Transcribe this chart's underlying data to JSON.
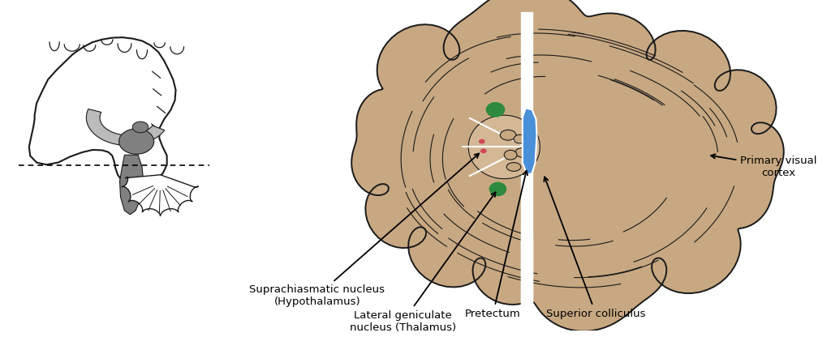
{
  "bg_color": "#ffffff",
  "brain_fill": "#c8a882",
  "brain_edge": "#1a1a1a",
  "brain_linewidth": 1.4,
  "green_color": "#2d8a3e",
  "blue_color": "#4a90d9",
  "pink_color": "#d04858",
  "gray_fill_dark": "#808080",
  "gray_fill_light": "#bbbbbb",
  "labels": {
    "suprachiasmatic": "Suprachiasmatic nucleus\n(Hypothalamus)",
    "lateral": "Lateral geniculate\nnucleus (Thalamus)",
    "pretectum": "Pretectum",
    "superior": "Superior colliculus",
    "primary_visual": "Primary visual\ncortex"
  },
  "label_fontsize": 9.5
}
